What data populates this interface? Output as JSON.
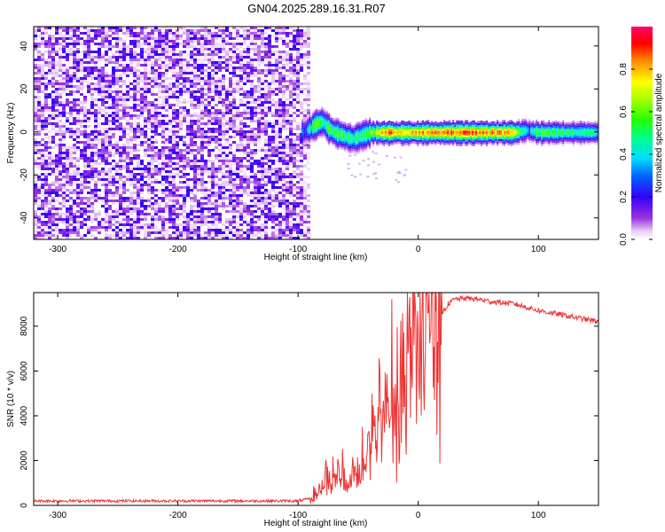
{
  "title": "GN04.2025.289.16.31.R07",
  "chart_data": [
    {
      "type": "heatmap",
      "xlabel": "Height of straight line (km)",
      "ylabel": "Frequency (Hz)",
      "xlim": [
        -320,
        150
      ],
      "ylim": [
        -50,
        49
      ],
      "xticks": [
        -300,
        -200,
        -100,
        0,
        100
      ],
      "yticks": [
        -40,
        -20,
        0,
        20,
        40
      ],
      "noise_region_x": [
        -320,
        -95
      ],
      "ridge": {
        "x": [
          -97,
          -90,
          -85,
          -80,
          -75,
          -70,
          -65,
          -60,
          -55,
          -50,
          -45,
          -40,
          -30,
          -20,
          -10,
          0,
          20,
          40,
          60,
          80,
          90,
          100,
          120,
          150
        ],
        "freq": [
          0,
          2,
          4,
          5,
          2,
          0,
          -1,
          -2,
          -3,
          -2,
          -1,
          0,
          0,
          0,
          0,
          0,
          0,
          0,
          0,
          0,
          1,
          0,
          0,
          0
        ],
        "peak": [
          0.25,
          0.45,
          0.55,
          0.5,
          0.5,
          0.55,
          0.55,
          0.5,
          0.45,
          0.5,
          0.55,
          0.6,
          0.8,
          0.85,
          0.8,
          0.8,
          0.85,
          0.9,
          0.85,
          0.8,
          0.3,
          0.55,
          0.5,
          0.45
        ]
      },
      "grid": false
    },
    {
      "type": "line",
      "xlabel": "Height of straight line (km)",
      "ylabel": "SNR (10 * v/v)",
      "xlim": [
        -320,
        150
      ],
      "ylim": [
        0,
        9500
      ],
      "xticks": [
        -300,
        -200,
        -100,
        0,
        100
      ],
      "yticks": [
        0,
        2000,
        4000,
        6000,
        8000
      ],
      "series": [
        {
          "color": "#ee3333",
          "x": [
            -320,
            -200,
            -100,
            -90,
            -80,
            -75,
            -70,
            -65,
            -60,
            -55,
            -50,
            -45,
            -40,
            -35,
            -30,
            -25,
            -20,
            -15,
            -10,
            -5,
            0,
            5,
            10,
            15,
            20,
            25,
            30,
            40,
            50,
            60,
            80,
            100,
            120,
            150
          ],
          "y": [
            200,
            200,
            200,
            300,
            600,
            1200,
            1500,
            1200,
            1000,
            1200,
            1500,
            2000,
            2500,
            3000,
            3500,
            4000,
            4200,
            4500,
            5000,
            5400,
            5800,
            6500,
            7200,
            8000,
            8600,
            9000,
            9200,
            9250,
            9200,
            9100,
            9000,
            8700,
            8500,
            8200
          ]
        }
      ],
      "grid": false
    }
  ],
  "colorbar": {
    "label": "Normalized spectral amplitude",
    "ticks": [
      "0.0",
      "0.2",
      "0.4",
      "0.6",
      "0.8"
    ],
    "range": [
      0,
      1
    ]
  }
}
